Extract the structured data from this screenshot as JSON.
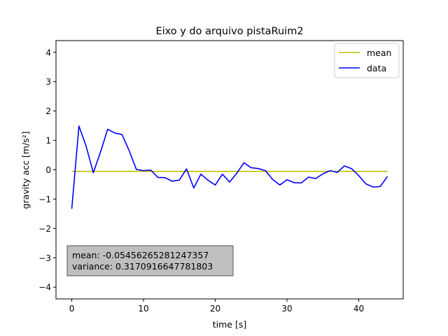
{
  "chart_data": {
    "type": "line",
    "title": "Eixo y do arquivo pistaRuim2",
    "xlabel": "time [s]",
    "ylabel": "gravity acc [m/s²]",
    "xlim": [
      -2.2,
      46.2
    ],
    "ylim": [
      -4.4,
      4.4
    ],
    "xticks": [
      0,
      10,
      20,
      30,
      40
    ],
    "yticks": [
      -4,
      -3,
      -2,
      -1,
      0,
      1,
      2,
      3,
      4
    ],
    "grid": false,
    "legend_position": "top-right",
    "series": [
      {
        "name": "mean",
        "color": "#bfbf00",
        "x": [
          0,
          44
        ],
        "y": [
          -0.05456265281247357,
          -0.05456265281247357
        ]
      },
      {
        "name": "data",
        "color": "#0000ff",
        "x": [
          0,
          1,
          2,
          3,
          4,
          5,
          6,
          7,
          8,
          9,
          10,
          11,
          12,
          13,
          14,
          15,
          16,
          17,
          18,
          19,
          20,
          21,
          22,
          23,
          24,
          25,
          26,
          27,
          28,
          29,
          30,
          31,
          32,
          33,
          34,
          35,
          36,
          37,
          38,
          39,
          40,
          41,
          42,
          43,
          44
        ],
        "y": [
          -1.33,
          1.49,
          0.8,
          -0.1,
          0.6,
          1.38,
          1.25,
          1.2,
          0.65,
          0.01,
          -0.03,
          -0.01,
          -0.26,
          -0.27,
          -0.39,
          -0.35,
          0.03,
          -0.62,
          -0.15,
          -0.36,
          -0.52,
          -0.15,
          -0.42,
          -0.12,
          0.24,
          0.07,
          0.04,
          -0.03,
          -0.33,
          -0.52,
          -0.34,
          -0.44,
          -0.45,
          -0.25,
          -0.3,
          -0.14,
          -0.03,
          -0.09,
          0.13,
          0.04,
          -0.2,
          -0.48,
          -0.59,
          -0.57,
          -0.23
        ]
      }
    ],
    "annotation": {
      "mean_line": "mean: -0.05456265281247357",
      "variance_line": "variance: 0.3170916647781803"
    }
  }
}
